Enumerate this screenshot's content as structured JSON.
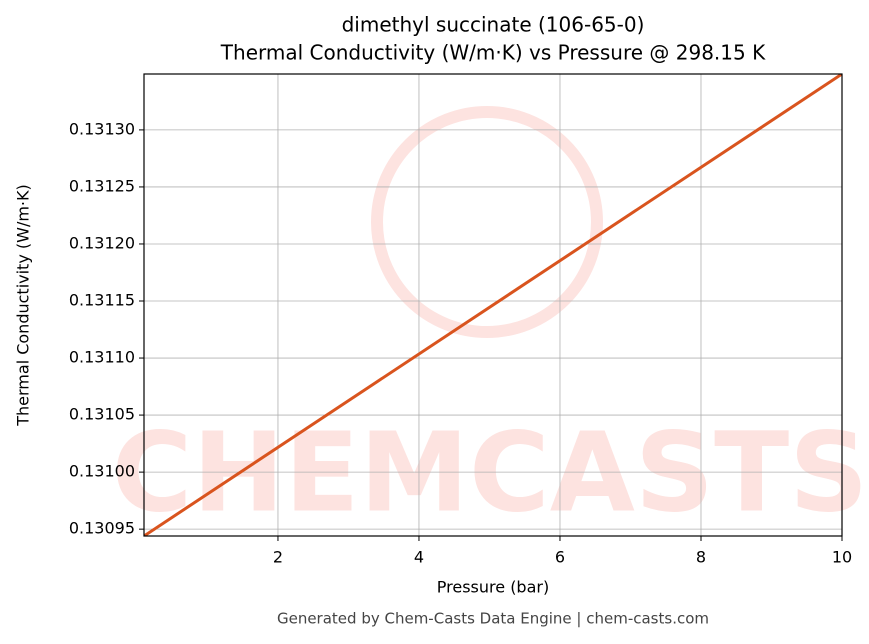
{
  "chart_data": {
    "type": "line",
    "title": "dimethyl succinate (106-65-0)",
    "subtitle": "Thermal Conductivity (W/m·K) vs Pressure @ 298.15 K",
    "x_label": "Pressure (bar)",
    "y_label": "Thermal Conductivity (W/m·K)",
    "x": [
      0.1,
      10
    ],
    "series": [
      {
        "name": "Thermal Conductivity",
        "color": "#d9541e",
        "values": [
          0.130944,
          0.131349
        ]
      }
    ],
    "xlim": [
      0.1,
      10
    ],
    "xticks": [
      2,
      4,
      6,
      8,
      10
    ],
    "ylim": [
      0.130944,
      0.131349
    ],
    "yticks": [
      {
        "value": 0.13095,
        "label": "0.13095"
      },
      {
        "value": 0.131,
        "label": "0.13100"
      },
      {
        "value": 0.13105,
        "label": "0.13105"
      },
      {
        "value": 0.1311,
        "label": "0.13110"
      },
      {
        "value": 0.13115,
        "label": "0.13115"
      },
      {
        "value": 0.1312,
        "label": "0.13120"
      },
      {
        "value": 0.13125,
        "label": "0.13125"
      },
      {
        "value": 0.1313,
        "label": "0.13130"
      }
    ],
    "grid": true,
    "watermark": "CHEMCASTS",
    "footer": "Generated by Chem-Casts Data Engine | chem-casts.com"
  }
}
